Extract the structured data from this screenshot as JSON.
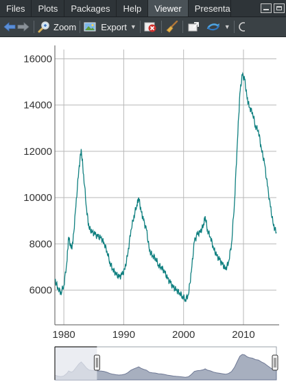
{
  "tabs": [
    {
      "id": "files",
      "label": "Files"
    },
    {
      "id": "plots",
      "label": "Plots"
    },
    {
      "id": "packages",
      "label": "Packages"
    },
    {
      "id": "help",
      "label": "Help"
    },
    {
      "id": "viewer",
      "label": "Viewer",
      "active": true
    },
    {
      "id": "presentation",
      "label": "Presentat"
    }
  ],
  "toolbar": {
    "zoom_label": "Zoom",
    "export_label": "Export"
  },
  "icons": {
    "back": "arrow-left-icon",
    "forward": "arrow-right-icon",
    "zoom": "magnifier-icon",
    "export": "image-export-icon",
    "remove": "remove-plot-icon",
    "clear": "broom-icon",
    "popout": "popout-icon",
    "refresh": "refresh-icon"
  },
  "colors": {
    "line": "#0e7f7f",
    "grid": "#b8b8b8",
    "navigator_fill": "#a7afbf",
    "navigator_stroke": "#6e7894",
    "navigator_mask": "#e4e7ee"
  },
  "chart_data": {
    "type": "line",
    "xlabel": "",
    "ylabel": "",
    "xlim": [
      1978.5,
      2015.5
    ],
    "ylim": [
      4500,
      16400
    ],
    "x_ticks": [
      1980,
      1990,
      2000,
      2010
    ],
    "y_ticks": [
      6000,
      8000,
      10000,
      12000,
      14000,
      16000
    ],
    "series": [
      {
        "points": [
          [
            1978.5,
            6450
          ],
          [
            1979.0,
            6100
          ],
          [
            1979.5,
            5900
          ],
          [
            1980.0,
            6200
          ],
          [
            1980.5,
            7200
          ],
          [
            1980.8,
            8300
          ],
          [
            1981.2,
            7800
          ],
          [
            1981.5,
            8000
          ],
          [
            1982.0,
            9600
          ],
          [
            1982.5,
            11200
          ],
          [
            1982.9,
            12100
          ],
          [
            1983.3,
            11000
          ],
          [
            1983.8,
            9500
          ],
          [
            1984.2,
            8700
          ],
          [
            1984.7,
            8500
          ],
          [
            1985.2,
            8400
          ],
          [
            1985.7,
            8300
          ],
          [
            1986.2,
            8250
          ],
          [
            1986.7,
            8050
          ],
          [
            1987.2,
            7700
          ],
          [
            1987.7,
            7200
          ],
          [
            1988.2,
            6900
          ],
          [
            1988.7,
            6700
          ],
          [
            1989.2,
            6550
          ],
          [
            1989.7,
            6650
          ],
          [
            1990.2,
            6900
          ],
          [
            1990.7,
            7600
          ],
          [
            1991.2,
            8600
          ],
          [
            1991.7,
            9200
          ],
          [
            1992.2,
            9700
          ],
          [
            1992.5,
            10000
          ],
          [
            1992.9,
            9400
          ],
          [
            1993.3,
            9000
          ],
          [
            1993.8,
            8600
          ],
          [
            1994.3,
            7700
          ],
          [
            1994.8,
            7500
          ],
          [
            1995.3,
            7400
          ],
          [
            1995.8,
            7100
          ],
          [
            1996.3,
            7000
          ],
          [
            1996.8,
            6800
          ],
          [
            1997.3,
            6500
          ],
          [
            1997.8,
            6300
          ],
          [
            1998.3,
            6100
          ],
          [
            1998.8,
            6000
          ],
          [
            1999.3,
            5900
          ],
          [
            1999.8,
            5750
          ],
          [
            2000.3,
            5600
          ],
          [
            2000.8,
            5800
          ],
          [
            2001.3,
            6800
          ],
          [
            2001.8,
            8100
          ],
          [
            2002.3,
            8400
          ],
          [
            2002.8,
            8500
          ],
          [
            2003.3,
            8800
          ],
          [
            2003.6,
            9200
          ],
          [
            2004.0,
            8600
          ],
          [
            2004.5,
            8300
          ],
          [
            2005.0,
            7800
          ],
          [
            2005.5,
            7500
          ],
          [
            2006.0,
            7300
          ],
          [
            2006.5,
            7100
          ],
          [
            2007.0,
            6900
          ],
          [
            2007.5,
            7200
          ],
          [
            2008.0,
            8000
          ],
          [
            2008.5,
            9800
          ],
          [
            2009.0,
            12500
          ],
          [
            2009.4,
            14500
          ],
          [
            2009.8,
            15300
          ],
          [
            2010.2,
            15100
          ],
          [
            2010.6,
            14300
          ],
          [
            2011.0,
            13900
          ],
          [
            2011.5,
            13700
          ],
          [
            2012.0,
            13100
          ],
          [
            2012.5,
            12900
          ],
          [
            2013.0,
            12100
          ],
          [
            2013.5,
            11500
          ],
          [
            2014.0,
            10500
          ],
          [
            2014.5,
            9600
          ],
          [
            2015.0,
            8800
          ],
          [
            2015.5,
            8500
          ]
        ]
      }
    ]
  },
  "navigator": {
    "selected_range": [
      0.19,
      1.0
    ]
  }
}
